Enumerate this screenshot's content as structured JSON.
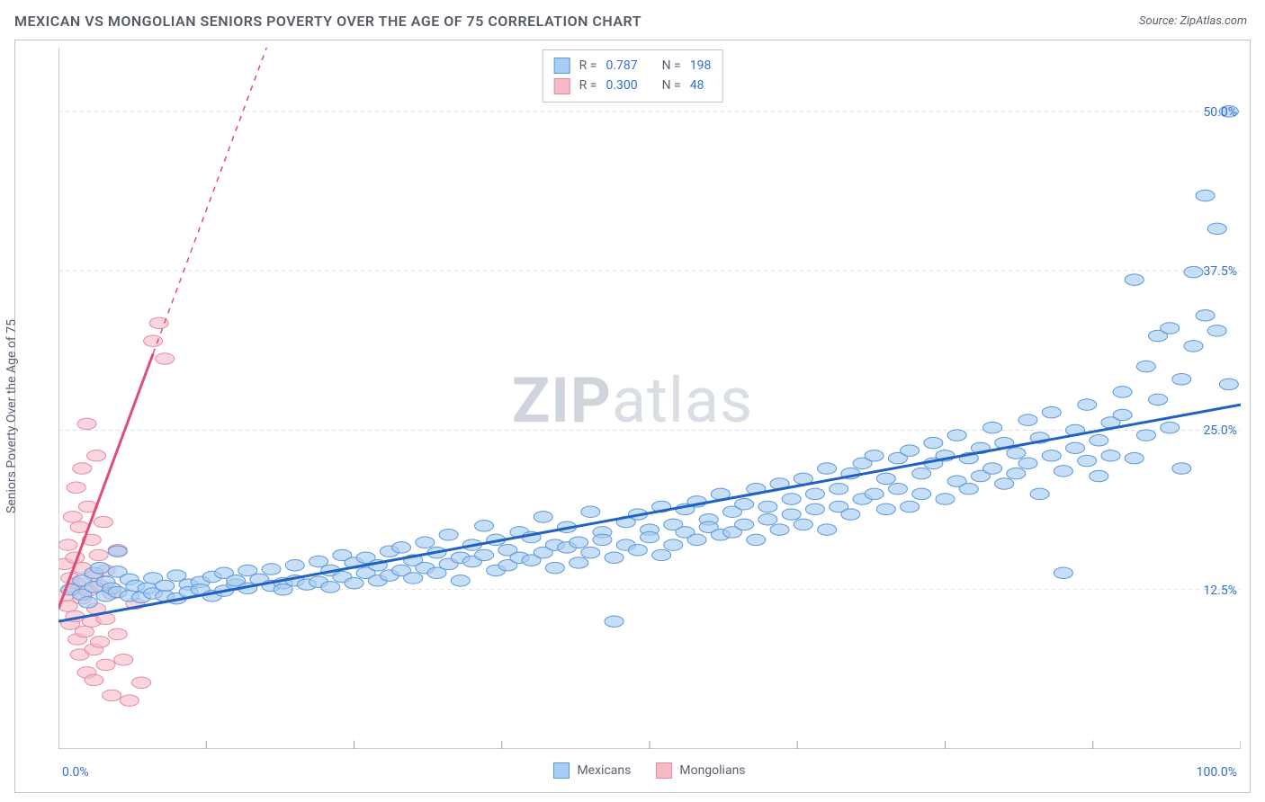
{
  "header": {
    "title": "MEXICAN VS MONGOLIAN SENIORS POVERTY OVER THE AGE OF 75 CORRELATION CHART",
    "source_prefix": "Source: ",
    "source_name": "ZipAtlas.com"
  },
  "y_axis_label": "Seniors Poverty Over the Age of 75",
  "watermark": {
    "bold": "ZIP",
    "rest": "atlas"
  },
  "chart": {
    "type": "scatter",
    "xlim": [
      0,
      100
    ],
    "ylim": [
      0,
      55
    ],
    "x_ticks": [
      0,
      12.5,
      25,
      37.5,
      50,
      62.5,
      75,
      87.5,
      100
    ],
    "x_tick_labels_shown": {
      "0": "0.0%",
      "100": "100.0%"
    },
    "y_grid": [
      12.5,
      25,
      37.5,
      50
    ],
    "y_tick_labels": {
      "12.5": "12.5%",
      "25": "25.0%",
      "37.5": "37.5%",
      "50": "50.0%"
    },
    "background_color": "#ffffff",
    "grid_color": "#d8dbe1",
    "grid_dash": "4,4",
    "axis_color": "#9aa0ab",
    "marker_radius": 8,
    "marker_stroke_width": 1,
    "series": [
      {
        "name": "Mexicans",
        "label": "Mexicans",
        "fill": "#a9cdf2",
        "fill_opacity": 0.65,
        "stroke": "#5b98da",
        "trend": {
          "color": "#1f61c4",
          "width": 3,
          "x1": 0,
          "y1": 10.0,
          "x2": 100,
          "y2": 27.0
        },
        "stats": {
          "r_label": "R =",
          "r": "0.787",
          "n_label": "N =",
          "n": "198"
        },
        "points": [
          [
            1,
            12.5
          ],
          [
            2,
            13.2
          ],
          [
            2,
            12.1
          ],
          [
            2.5,
            11.5
          ],
          [
            3,
            13.8
          ],
          [
            3,
            12.7
          ],
          [
            3.5,
            14.2
          ],
          [
            4,
            12.0
          ],
          [
            4,
            13.1
          ],
          [
            4.5,
            12.6
          ],
          [
            5,
            12.3
          ],
          [
            5,
            13.9
          ],
          [
            5,
            15.5
          ],
          [
            6,
            12.0
          ],
          [
            6,
            13.3
          ],
          [
            6.5,
            12.8
          ],
          [
            7,
            11.9
          ],
          [
            7.5,
            12.6
          ],
          [
            8,
            12.2
          ],
          [
            8,
            13.4
          ],
          [
            9,
            12.8
          ],
          [
            9,
            12.0
          ],
          [
            10,
            13.6
          ],
          [
            10,
            11.8
          ],
          [
            11,
            12.9
          ],
          [
            11,
            12.3
          ],
          [
            12,
            13.1
          ],
          [
            12,
            12.5
          ],
          [
            13,
            12.0
          ],
          [
            13,
            13.5
          ],
          [
            14,
            13.8
          ],
          [
            14,
            12.4
          ],
          [
            15,
            12.9
          ],
          [
            15,
            13.2
          ],
          [
            16,
            12.6
          ],
          [
            16,
            14.0
          ],
          [
            17,
            13.3
          ],
          [
            18,
            12.8
          ],
          [
            18,
            14.1
          ],
          [
            19,
            13.0
          ],
          [
            19,
            12.5
          ],
          [
            20,
            13.2
          ],
          [
            20,
            14.4
          ],
          [
            21,
            12.9
          ],
          [
            22,
            14.7
          ],
          [
            22,
            13.1
          ],
          [
            23,
            12.7
          ],
          [
            23,
            14.0
          ],
          [
            24,
            13.5
          ],
          [
            24,
            15.2
          ],
          [
            25,
            13.0
          ],
          [
            25,
            14.6
          ],
          [
            26,
            13.8
          ],
          [
            26,
            15.0
          ],
          [
            27,
            13.2
          ],
          [
            27,
            14.4
          ],
          [
            28,
            15.5
          ],
          [
            28,
            13.6
          ],
          [
            29,
            14.0
          ],
          [
            29,
            15.8
          ],
          [
            30,
            13.4
          ],
          [
            30,
            14.8
          ],
          [
            31,
            16.2
          ],
          [
            31,
            14.2
          ],
          [
            32,
            13.8
          ],
          [
            32,
            15.4
          ],
          [
            33,
            16.8
          ],
          [
            33,
            14.5
          ],
          [
            34,
            15.0
          ],
          [
            34,
            13.2
          ],
          [
            35,
            16.0
          ],
          [
            35,
            14.7
          ],
          [
            36,
            17.5
          ],
          [
            36,
            15.2
          ],
          [
            37,
            14.0
          ],
          [
            37,
            16.4
          ],
          [
            38,
            15.6
          ],
          [
            38,
            14.4
          ],
          [
            39,
            17.0
          ],
          [
            39,
            15.0
          ],
          [
            40,
            14.8
          ],
          [
            40,
            16.6
          ],
          [
            41,
            15.4
          ],
          [
            41,
            18.2
          ],
          [
            42,
            14.2
          ],
          [
            42,
            16.0
          ],
          [
            43,
            17.4
          ],
          [
            43,
            15.8
          ],
          [
            44,
            16.2
          ],
          [
            44,
            14.6
          ],
          [
            45,
            18.6
          ],
          [
            45,
            15.4
          ],
          [
            46,
            17.0
          ],
          [
            46,
            16.4
          ],
          [
            47,
            10.0
          ],
          [
            47,
            15.0
          ],
          [
            48,
            17.8
          ],
          [
            48,
            16.0
          ],
          [
            49,
            15.6
          ],
          [
            49,
            18.4
          ],
          [
            50,
            17.2
          ],
          [
            50,
            16.6
          ],
          [
            51,
            15.2
          ],
          [
            51,
            19.0
          ],
          [
            52,
            17.6
          ],
          [
            52,
            16.0
          ],
          [
            53,
            18.8
          ],
          [
            53,
            17.0
          ],
          [
            54,
            16.4
          ],
          [
            54,
            19.4
          ],
          [
            55,
            18.0
          ],
          [
            55,
            17.4
          ],
          [
            56,
            16.8
          ],
          [
            56,
            20.0
          ],
          [
            57,
            17.0
          ],
          [
            57,
            18.6
          ],
          [
            58,
            19.2
          ],
          [
            58,
            17.6
          ],
          [
            59,
            16.4
          ],
          [
            59,
            20.4
          ],
          [
            60,
            18.0
          ],
          [
            60,
            19.0
          ],
          [
            61,
            17.2
          ],
          [
            61,
            20.8
          ],
          [
            62,
            18.4
          ],
          [
            62,
            19.6
          ],
          [
            63,
            17.6
          ],
          [
            63,
            21.2
          ],
          [
            64,
            18.8
          ],
          [
            64,
            20.0
          ],
          [
            65,
            17.2
          ],
          [
            65,
            22.0
          ],
          [
            66,
            19.0
          ],
          [
            66,
            20.4
          ],
          [
            67,
            18.4
          ],
          [
            67,
            21.6
          ],
          [
            68,
            22.4
          ],
          [
            68,
            19.6
          ],
          [
            69,
            20.0
          ],
          [
            69,
            23.0
          ],
          [
            70,
            18.8
          ],
          [
            70,
            21.2
          ],
          [
            71,
            22.8
          ],
          [
            71,
            20.4
          ],
          [
            72,
            19.0
          ],
          [
            72,
            23.4
          ],
          [
            73,
            21.6
          ],
          [
            73,
            20.0
          ],
          [
            74,
            22.4
          ],
          [
            74,
            24.0
          ],
          [
            75,
            19.6
          ],
          [
            75,
            23.0
          ],
          [
            76,
            21.0
          ],
          [
            76,
            24.6
          ],
          [
            77,
            20.4
          ],
          [
            77,
            22.8
          ],
          [
            78,
            23.6
          ],
          [
            78,
            21.4
          ],
          [
            79,
            22.0
          ],
          [
            79,
            25.2
          ],
          [
            80,
            20.8
          ],
          [
            80,
            24.0
          ],
          [
            81,
            23.2
          ],
          [
            81,
            21.6
          ],
          [
            82,
            22.4
          ],
          [
            82,
            25.8
          ],
          [
            83,
            20.0
          ],
          [
            83,
            24.4
          ],
          [
            84,
            23.0
          ],
          [
            84,
            26.4
          ],
          [
            85,
            21.8
          ],
          [
            85,
            13.8
          ],
          [
            86,
            25.0
          ],
          [
            86,
            23.6
          ],
          [
            87,
            22.6
          ],
          [
            87,
            27.0
          ],
          [
            88,
            24.2
          ],
          [
            88,
            21.4
          ],
          [
            89,
            25.6
          ],
          [
            89,
            23.0
          ],
          [
            90,
            28.0
          ],
          [
            90,
            26.2
          ],
          [
            91,
            22.8
          ],
          [
            91,
            36.8
          ],
          [
            92,
            24.6
          ],
          [
            92,
            30.0
          ],
          [
            93,
            27.4
          ],
          [
            93,
            32.4
          ],
          [
            94,
            25.2
          ],
          [
            94,
            33.0
          ],
          [
            95,
            29.0
          ],
          [
            95,
            22.0
          ],
          [
            96,
            31.6
          ],
          [
            96,
            37.4
          ],
          [
            97,
            34.0
          ],
          [
            97,
            43.4
          ],
          [
            98,
            40.8
          ],
          [
            98,
            32.8
          ],
          [
            99,
            50.0
          ],
          [
            99,
            28.6
          ]
        ]
      },
      {
        "name": "Mongolians",
        "label": "Mongolians",
        "fill": "#f6b9c6",
        "fill_opacity": 0.6,
        "stroke": "#e58aa0",
        "trend": {
          "color": "#e24c78",
          "width": 3,
          "x1": 0,
          "y1": 11.0,
          "x2": 8,
          "y2": 31.0,
          "dash_after_x": 8,
          "dash_end_x": 28,
          "dash_end_y": 81.0
        },
        "stats": {
          "r_label": "R =",
          "r": "0.300",
          "n_label": "N =",
          "n": "48"
        },
        "points": [
          [
            0.5,
            12.0
          ],
          [
            0.5,
            14.5
          ],
          [
            0.8,
            11.2
          ],
          [
            0.8,
            16.0
          ],
          [
            1.0,
            13.4
          ],
          [
            1.0,
            9.8
          ],
          [
            1.2,
            18.2
          ],
          [
            1.2,
            12.6
          ],
          [
            1.4,
            10.4
          ],
          [
            1.4,
            15.0
          ],
          [
            1.5,
            20.5
          ],
          [
            1.5,
            13.0
          ],
          [
            1.6,
            8.6
          ],
          [
            1.8,
            7.4
          ],
          [
            1.8,
            17.4
          ],
          [
            2.0,
            11.8
          ],
          [
            2.0,
            22.0
          ],
          [
            2.0,
            14.2
          ],
          [
            2.2,
            9.2
          ],
          [
            2.4,
            6.0
          ],
          [
            2.4,
            25.5
          ],
          [
            2.5,
            12.4
          ],
          [
            2.5,
            19.0
          ],
          [
            2.8,
            10.0
          ],
          [
            2.8,
            16.4
          ],
          [
            3.0,
            7.8
          ],
          [
            3.0,
            13.6
          ],
          [
            3.0,
            5.4
          ],
          [
            3.2,
            23.0
          ],
          [
            3.2,
            11.0
          ],
          [
            3.4,
            15.2
          ],
          [
            3.5,
            8.4
          ],
          [
            3.5,
            12.8
          ],
          [
            3.8,
            17.8
          ],
          [
            4.0,
            6.6
          ],
          [
            4.0,
            14.0
          ],
          [
            4.0,
            10.2
          ],
          [
            4.5,
            4.2
          ],
          [
            4.5,
            12.2
          ],
          [
            5.0,
            9.0
          ],
          [
            5.0,
            15.6
          ],
          [
            5.5,
            7.0
          ],
          [
            6.0,
            3.8
          ],
          [
            6.5,
            11.4
          ],
          [
            7.0,
            5.2
          ],
          [
            8.0,
            32.0
          ],
          [
            8.5,
            33.4
          ],
          [
            9.0,
            30.6
          ]
        ]
      }
    ]
  },
  "bottom_legend": {
    "left_label": "0.0%",
    "right_label": "100.0%"
  }
}
